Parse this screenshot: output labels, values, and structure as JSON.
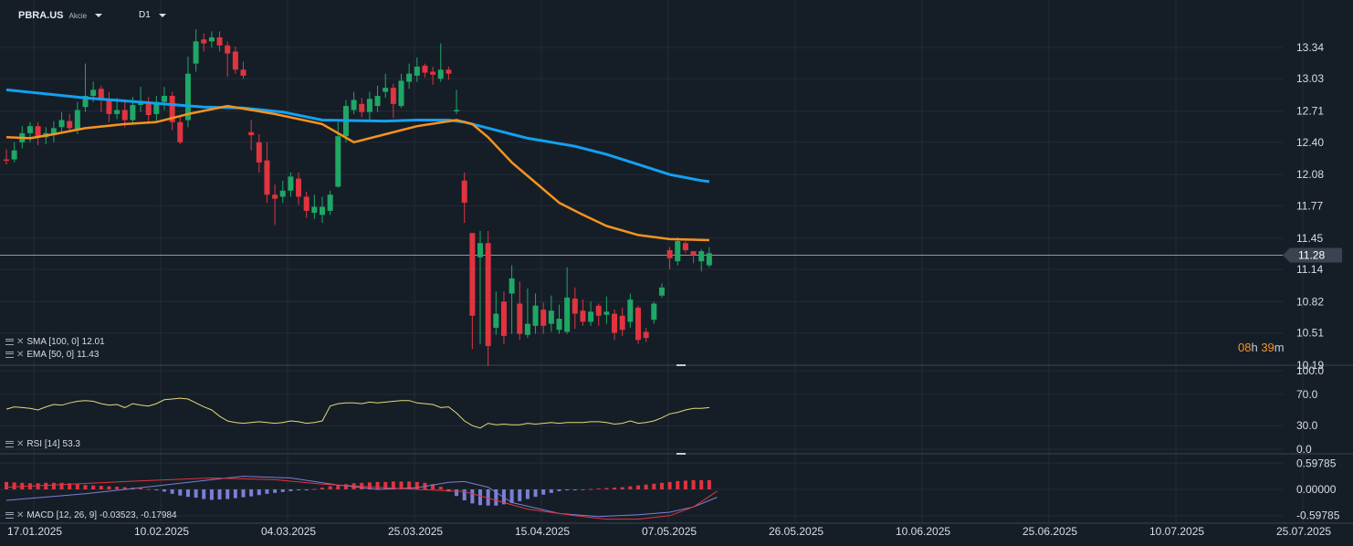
{
  "symbol": {
    "name": "PBRA.US",
    "type": "Akcie"
  },
  "timeframe": "D1",
  "colors": {
    "background": "#151e27",
    "grid": "#222c36",
    "up": "#1fa766",
    "down": "#e0343f",
    "sma": "#14a0f0",
    "ema": "#f7931e",
    "rsi": "#e6d778",
    "macd_line": "#7b7fd4",
    "signal_line": "#e0343f",
    "separator": "#3a444f"
  },
  "price_axis": {
    "ticks": [
      "13.34",
      "13.03",
      "12.71",
      "12.40",
      "12.08",
      "11.77",
      "11.45",
      "11.14",
      "10.82",
      "10.51",
      "10.19"
    ],
    "current_price": "11.28"
  },
  "date_axis": [
    "17.01.2025",
    "10.02.2025",
    "04.03.2025",
    "25.03.2025",
    "15.04.2025",
    "07.05.2025",
    "26.05.2025",
    "10.06.2025",
    "25.06.2025",
    "10.07.2025",
    "25.07.2025"
  ],
  "indicators": {
    "sma": {
      "label": "SMA [100, 0]",
      "value": "12.01"
    },
    "ema": {
      "label": "EMA [50, 0]",
      "value": "11.43"
    },
    "rsi": {
      "label": "RSI [14]",
      "value": "53.3",
      "ticks": [
        "100.0",
        "70.0",
        "30.0",
        "0.0"
      ]
    },
    "macd": {
      "label": "MACD [12, 26, 9]",
      "value": "-0.03523, -0.17984",
      "ticks": [
        "0.59785",
        "0.00000",
        "-0.59785"
      ]
    }
  },
  "timer": {
    "hours": "08",
    "h_unit": "h",
    "minutes": "39",
    "m_unit": "m"
  },
  "candles": [
    [
      12.23,
      12.22,
      12.33,
      12.18
    ],
    [
      12.23,
      12.32,
      12.4,
      12.2
    ],
    [
      12.4,
      12.49,
      12.56,
      12.34
    ],
    [
      12.49,
      12.56,
      12.6,
      12.4
    ],
    [
      12.56,
      12.45,
      12.6,
      12.37
    ],
    [
      12.45,
      12.49,
      12.55,
      12.38
    ],
    [
      12.48,
      12.54,
      12.61,
      12.4
    ],
    [
      12.55,
      12.62,
      12.7,
      12.5
    ],
    [
      12.61,
      12.54,
      12.68,
      12.5
    ],
    [
      12.53,
      12.72,
      12.8,
      12.48
    ],
    [
      12.75,
      12.86,
      13.18,
      12.7
    ],
    [
      12.86,
      12.92,
      13.0,
      12.8
    ],
    [
      12.93,
      12.83,
      12.96,
      12.7
    ],
    [
      12.83,
      12.68,
      12.9,
      12.6
    ],
    [
      12.68,
      12.72,
      12.84,
      12.63
    ],
    [
      12.72,
      12.62,
      12.8,
      12.55
    ],
    [
      12.62,
      12.77,
      12.85,
      12.58
    ],
    [
      12.77,
      12.8,
      12.95,
      12.7
    ],
    [
      12.8,
      12.67,
      12.85,
      12.6
    ],
    [
      12.68,
      12.8,
      12.86,
      12.6
    ],
    [
      12.8,
      12.86,
      12.95,
      12.72
    ],
    [
      12.86,
      12.6,
      12.9,
      12.52
    ],
    [
      12.6,
      12.4,
      12.66,
      12.38
    ],
    [
      12.62,
      13.08,
      13.25,
      12.55
    ],
    [
      13.18,
      13.4,
      13.52,
      13.1
    ],
    [
      13.42,
      13.38,
      13.48,
      13.3
    ],
    [
      13.4,
      13.44,
      13.5,
      13.34
    ],
    [
      13.44,
      13.36,
      13.5,
      13.3
    ],
    [
      13.36,
      13.28,
      13.4,
      13.05
    ],
    [
      13.3,
      13.12,
      13.35,
      13.08
    ],
    [
      13.12,
      13.06,
      13.2,
      13.03
    ],
    [
      12.5,
      12.47,
      12.62,
      12.32
    ],
    [
      12.4,
      12.2,
      12.48,
      12.1
    ],
    [
      12.22,
      11.88,
      12.4,
      11.8
    ],
    [
      11.88,
      11.84,
      11.98,
      11.58
    ],
    [
      11.86,
      11.92,
      12.02,
      11.8
    ],
    [
      11.92,
      12.06,
      12.1,
      11.86
    ],
    [
      12.04,
      11.86,
      12.1,
      11.78
    ],
    [
      11.86,
      11.72,
      11.91,
      11.65
    ],
    [
      11.7,
      11.76,
      11.88,
      11.64
    ],
    [
      11.68,
      11.76,
      11.86,
      11.6
    ],
    [
      11.72,
      11.88,
      11.92,
      11.68
    ],
    [
      11.96,
      12.46,
      12.6,
      11.95
    ],
    [
      12.46,
      12.76,
      12.82,
      12.4
    ],
    [
      12.72,
      12.82,
      12.9,
      12.68
    ],
    [
      12.78,
      12.7,
      12.84,
      12.65
    ],
    [
      12.7,
      12.83,
      12.9,
      12.62
    ],
    [
      12.76,
      12.86,
      12.96,
      12.7
    ],
    [
      12.9,
      12.94,
      13.08,
      12.84
    ],
    [
      12.94,
      12.78,
      12.98,
      12.64
    ],
    [
      12.76,
      13.01,
      13.08,
      12.74
    ],
    [
      13.0,
      13.08,
      13.18,
      12.93
    ],
    [
      13.06,
      13.15,
      13.24,
      13.0
    ],
    [
      13.16,
      13.09,
      13.18,
      13.04
    ],
    [
      13.1,
      13.07,
      13.15,
      12.97
    ],
    [
      13.03,
      13.12,
      13.38,
      13.0
    ],
    [
      13.12,
      13.08,
      13.15,
      13.02
    ],
    [
      12.72,
      12.72,
      12.92,
      12.68
    ],
    [
      12.02,
      11.8,
      12.1,
      11.6
    ],
    [
      11.5,
      10.68,
      11.5,
      10.35
    ],
    [
      11.26,
      11.4,
      11.52,
      10.4
    ],
    [
      11.4,
      10.38,
      11.52,
      10.18
    ],
    [
      10.56,
      10.7,
      10.92,
      10.49
    ],
    [
      10.82,
      10.48,
      10.92,
      10.4
    ],
    [
      10.9,
      11.05,
      11.18,
      10.5
    ],
    [
      10.8,
      10.5,
      11.02,
      10.44
    ],
    [
      10.49,
      10.6,
      10.95,
      10.46
    ],
    [
      10.58,
      10.78,
      10.9,
      10.5
    ],
    [
      10.74,
      10.58,
      10.81,
      10.5
    ],
    [
      10.6,
      10.73,
      10.88,
      10.52
    ],
    [
      10.54,
      10.65,
      10.79,
      10.5
    ],
    [
      10.52,
      10.86,
      11.16,
      10.5
    ],
    [
      10.85,
      10.7,
      10.96,
      10.55
    ],
    [
      10.73,
      10.62,
      10.84,
      10.58
    ],
    [
      10.62,
      10.72,
      10.82,
      10.58
    ],
    [
      10.78,
      10.68,
      10.8,
      10.58
    ],
    [
      10.69,
      10.72,
      10.87,
      10.6
    ],
    [
      10.7,
      10.51,
      10.74,
      10.44
    ],
    [
      10.68,
      10.54,
      10.76,
      10.48
    ],
    [
      10.62,
      10.84,
      10.9,
      10.56
    ],
    [
      10.76,
      10.44,
      10.78,
      10.4
    ],
    [
      10.52,
      10.46,
      10.56,
      10.42
    ],
    [
      10.64,
      10.8,
      10.82,
      10.6
    ],
    [
      10.88,
      10.96,
      11.0,
      10.86
    ],
    [
      11.33,
      11.25,
      11.36,
      11.14
    ],
    [
      11.22,
      11.42,
      11.46,
      11.18
    ],
    [
      11.4,
      11.33,
      11.42,
      11.3
    ],
    [
      11.32,
      11.28,
      11.3,
      11.2
    ],
    [
      11.22,
      11.32,
      11.34,
      11.12
    ],
    [
      11.18,
      11.3,
      11.36,
      11.16
    ]
  ]
}
